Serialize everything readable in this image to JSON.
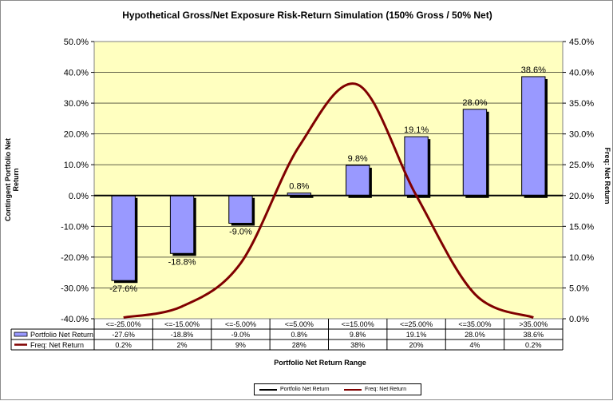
{
  "chart_data": {
    "type": "bar",
    "title": "Hypothetical Gross/Net Exposure Risk-Return Simulation (150% Gross / 50% Net)",
    "xlabel": "Portfolio Net Return Range",
    "ylabel": "Contingent Portfolio Net Return",
    "y2label": "Freq: Net Return",
    "categories": [
      "<=-25.00%",
      "<=-15.00%",
      "<=-5.00%",
      "<=5.00%",
      "<=15.00%",
      "<=25.00%",
      "<=35.00%",
      ">35.00%"
    ],
    "series": [
      {
        "name": "Portfolio Net Return",
        "type": "bar",
        "axis": "left",
        "values": [
          -27.6,
          -18.8,
          -9.0,
          0.8,
          9.8,
          19.1,
          28.0,
          38.6
        ],
        "data_labels": [
          "-27.6%",
          "-18.8%",
          "-9.0%",
          "0.8%",
          "9.8%",
          "19.1%",
          "28.0%",
          "38.6%"
        ],
        "table_values": [
          "-27.6%",
          "-18.8%",
          "-9.0%",
          "0.8%",
          "9.8%",
          "19.1%",
          "28.0%",
          "38.6%"
        ],
        "color": "#9999ff"
      },
      {
        "name": "Freq: Net Return",
        "type": "line",
        "axis": "right",
        "values": [
          0.2,
          2,
          9,
          28,
          38,
          20,
          4,
          0.2
        ],
        "table_values": [
          "0.2%",
          "2%",
          "9%",
          "28%",
          "38%",
          "20%",
          "4%",
          "0.2%"
        ],
        "color": "#800000"
      }
    ],
    "ylim": [
      -40,
      50
    ],
    "y2lim": [
      0,
      45
    ],
    "y_ticks": [
      "50.0%",
      "40.0%",
      "30.0%",
      "20.0%",
      "10.0%",
      "0.0%",
      "-10.0%",
      "-20.0%",
      "-30.0%",
      "-40.0%"
    ],
    "y2_ticks": [
      "45.0%",
      "40.0%",
      "35.0%",
      "30.0%",
      "25.0%",
      "20.0%",
      "15.0%",
      "10.0%",
      "5.0%",
      "0.0%"
    ],
    "plot_background": "#ffffc0",
    "grid": true,
    "legend": "bottom",
    "data_table": true
  }
}
